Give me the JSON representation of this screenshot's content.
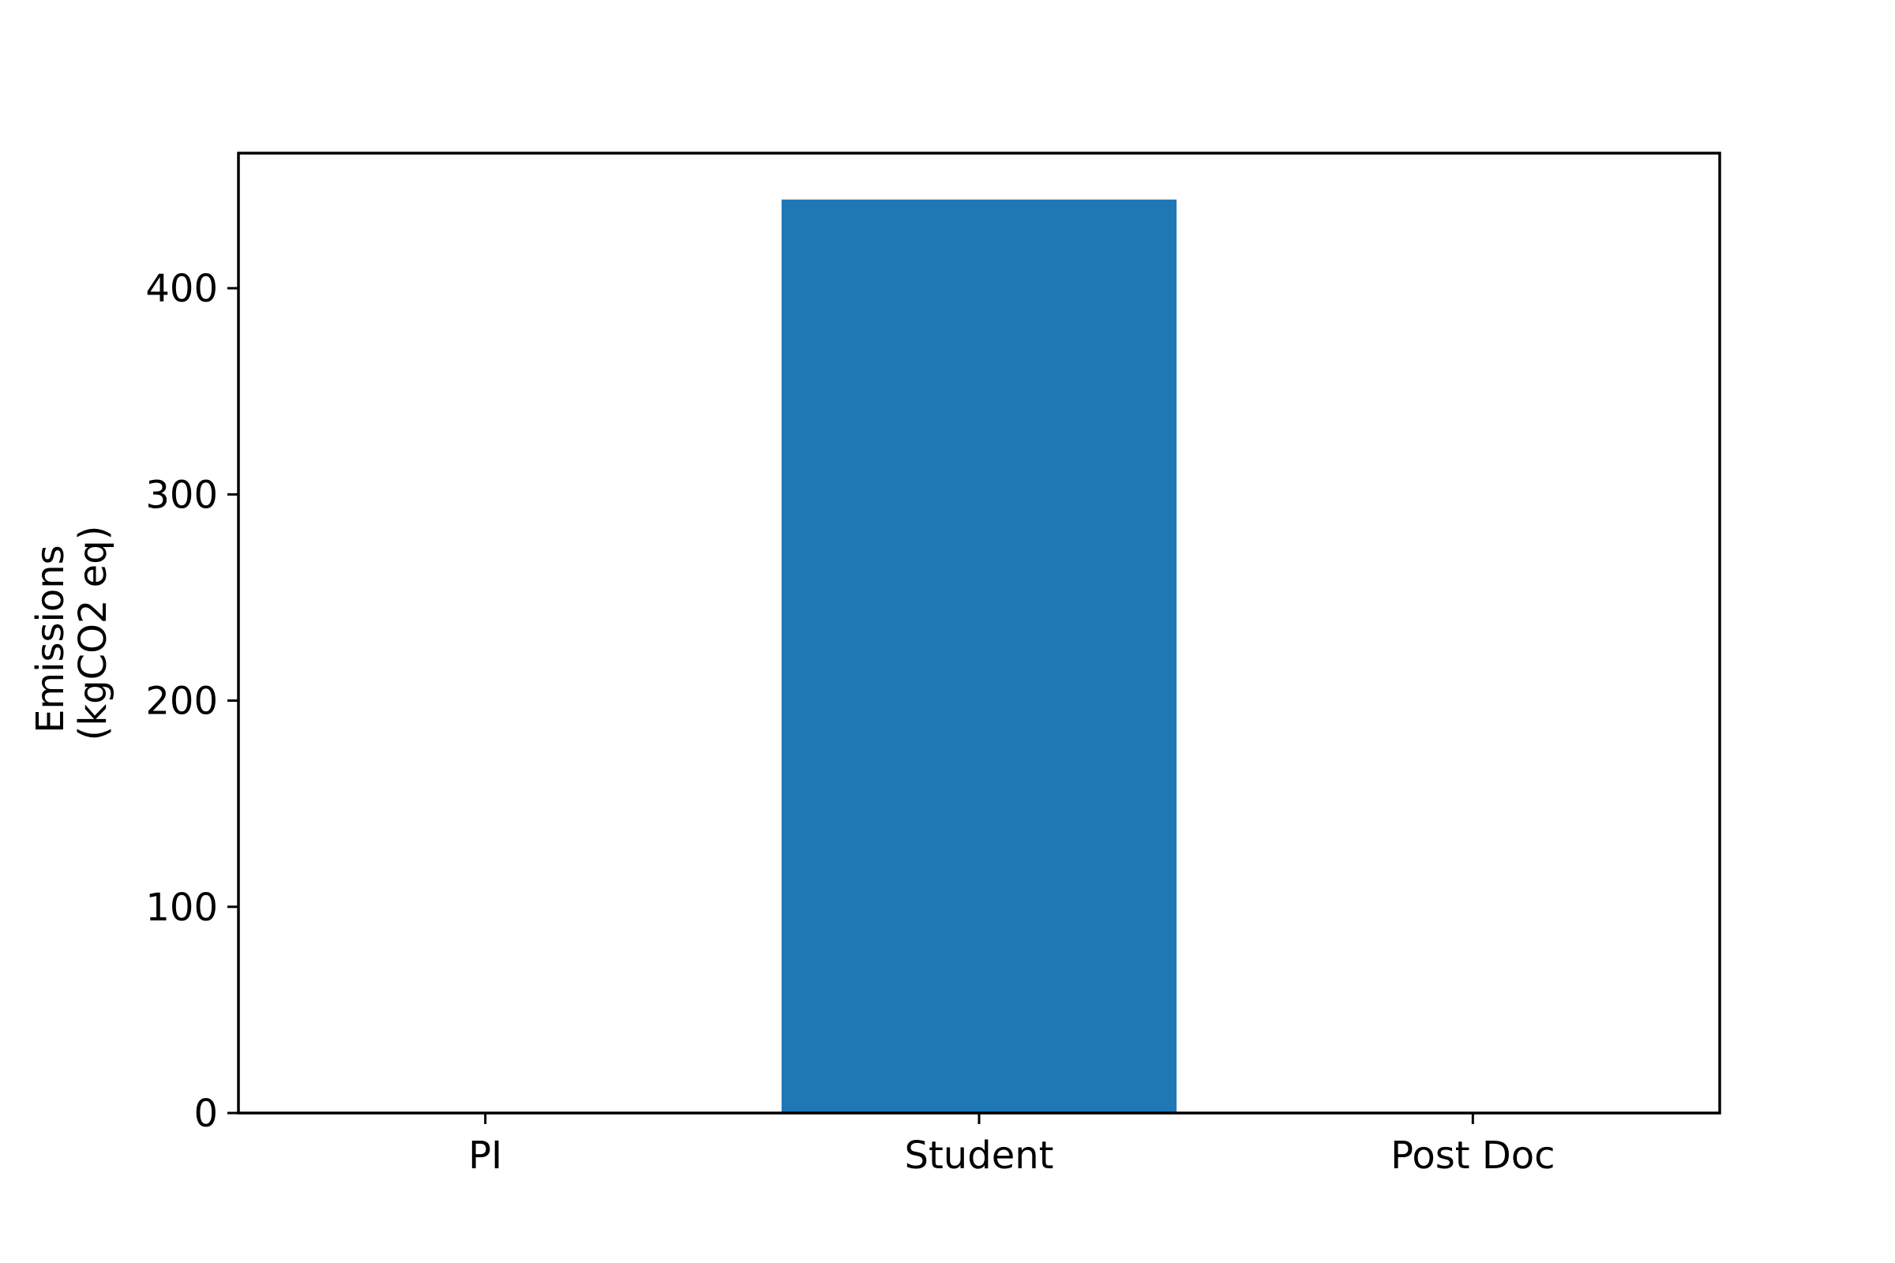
{
  "chart_data": {
    "type": "bar",
    "categories": [
      "PI",
      "Student",
      "Post Doc"
    ],
    "values": [
      0,
      443,
      0
    ],
    "title": "",
    "xlabel": "",
    "ylabel_lines": [
      "Emissions",
      "(kgCO2 eq)"
    ],
    "ylim": [
      0,
      465.5
    ],
    "yticks": [
      0,
      100,
      200,
      300,
      400
    ],
    "bar_color": "#1f77b4",
    "grid": false,
    "legend": "none"
  }
}
